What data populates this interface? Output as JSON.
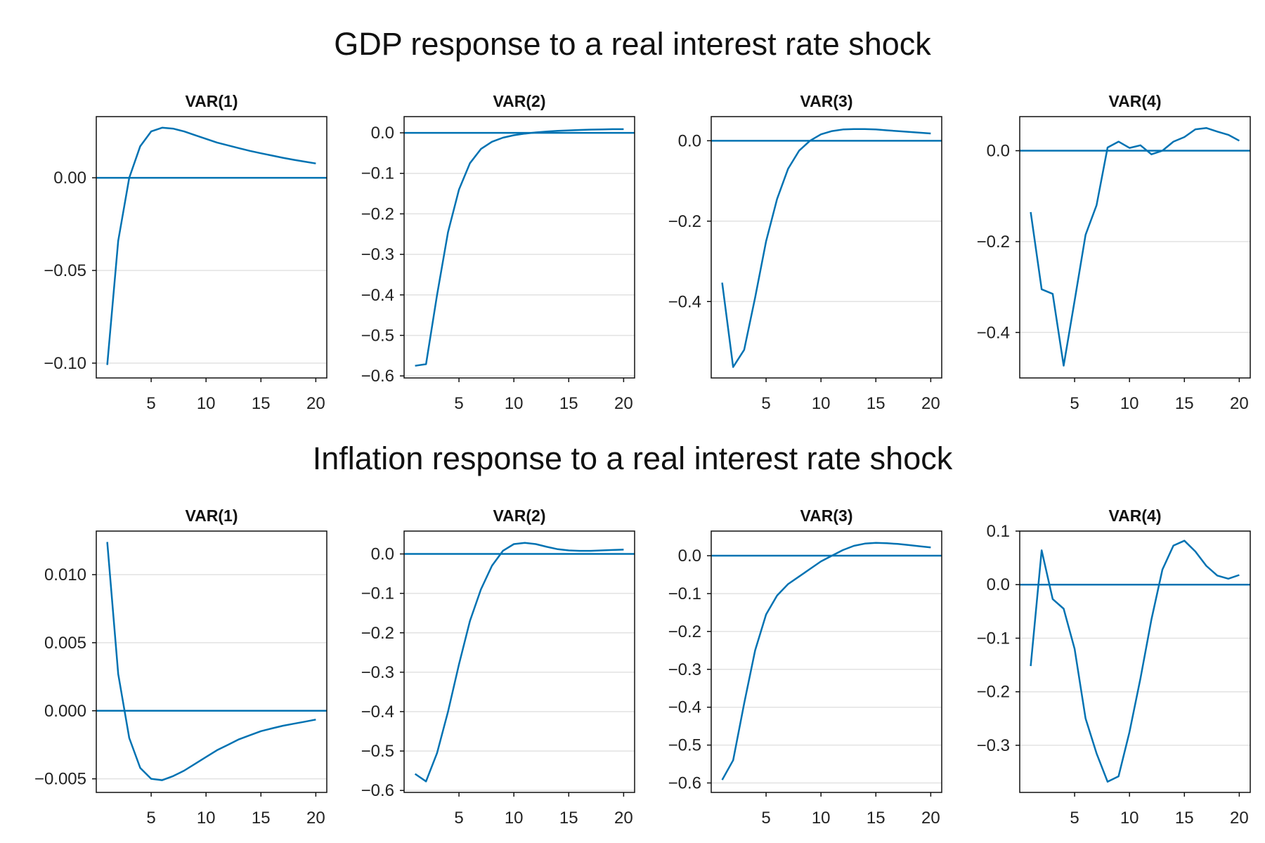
{
  "titles": {
    "top": "GDP response to a real interest rate shock",
    "bottom": "Inflation response to a real interest rate shock"
  },
  "colors": {
    "line": "#0072b2",
    "grid": "#e2e2e2",
    "frame": "#111111"
  },
  "chart_data": [
    {
      "type": "line",
      "group": "GDP response to a real interest rate shock",
      "title": "VAR(1)",
      "x": [
        1,
        2,
        3,
        4,
        5,
        6,
        7,
        8,
        9,
        10,
        11,
        12,
        13,
        14,
        15,
        16,
        17,
        18,
        19,
        20
      ],
      "series": [
        {
          "values": [
            -0.101,
            -0.034,
            0.0,
            0.017,
            0.025,
            0.027,
            0.0265,
            0.025,
            0.023,
            0.021,
            0.019,
            0.0175,
            0.016,
            0.0145,
            0.0132,
            0.012,
            0.0108,
            0.0097,
            0.0087,
            0.0077
          ]
        }
      ],
      "xlim": [
        0,
        21
      ],
      "ylim": [
        -0.108,
        0.033
      ],
      "xticks": [
        5,
        10,
        15,
        20
      ],
      "xtick_labels": [
        "5",
        "10",
        "15",
        "20"
      ],
      "yticks": [
        -0.1,
        -0.05,
        0.0
      ],
      "ytick_labels": [
        "−0.10",
        "−0.05",
        "0.00"
      ],
      "hline": 0,
      "grid": true
    },
    {
      "type": "line",
      "group": "GDP response to a real interest rate shock",
      "title": "VAR(2)",
      "x": [
        1,
        2,
        3,
        4,
        5,
        6,
        7,
        8,
        9,
        10,
        11,
        12,
        13,
        14,
        15,
        16,
        17,
        18,
        19,
        20
      ],
      "series": [
        {
          "values": [
            -0.575,
            -0.571,
            -0.4,
            -0.245,
            -0.14,
            -0.075,
            -0.04,
            -0.022,
            -0.012,
            -0.006,
            -0.002,
            0.001,
            0.003,
            0.005,
            0.006,
            0.007,
            0.008,
            0.0085,
            0.009,
            0.009
          ]
        }
      ],
      "xlim": [
        0,
        21
      ],
      "ylim": [
        -0.605,
        0.04
      ],
      "xticks": [
        5,
        10,
        15,
        20
      ],
      "xtick_labels": [
        "5",
        "10",
        "15",
        "20"
      ],
      "yticks": [
        0.0,
        -0.1,
        -0.2,
        -0.3,
        -0.4,
        -0.5,
        -0.6
      ],
      "ytick_labels": [
        "0.0",
        "−0.1",
        "−0.2",
        "−0.3",
        "−0.4",
        "−0.5",
        "−0.6"
      ],
      "hline": 0,
      "grid": true
    },
    {
      "type": "line",
      "group": "GDP response to a real interest rate shock",
      "title": "VAR(3)",
      "x": [
        1,
        2,
        3,
        4,
        5,
        6,
        7,
        8,
        9,
        10,
        11,
        12,
        13,
        14,
        15,
        16,
        17,
        18,
        19,
        20
      ],
      "series": [
        {
          "values": [
            -0.353,
            -0.563,
            -0.52,
            -0.39,
            -0.25,
            -0.145,
            -0.07,
            -0.025,
            0.0,
            0.016,
            0.024,
            0.028,
            0.029,
            0.029,
            0.028,
            0.026,
            0.024,
            0.022,
            0.02,
            0.018
          ]
        }
      ],
      "xlim": [
        0,
        21
      ],
      "ylim": [
        -0.59,
        0.06
      ],
      "xticks": [
        5,
        10,
        15,
        20
      ],
      "xtick_labels": [
        "5",
        "10",
        "15",
        "20"
      ],
      "yticks": [
        0.0,
        -0.2,
        -0.4
      ],
      "ytick_labels": [
        "0.0",
        "−0.2",
        "−0.4"
      ],
      "hline": 0,
      "grid": true
    },
    {
      "type": "line",
      "group": "GDP response to a real interest rate shock",
      "title": "VAR(4)",
      "x": [
        1,
        2,
        3,
        4,
        5,
        6,
        7,
        8,
        9,
        10,
        11,
        12,
        13,
        14,
        15,
        16,
        17,
        18,
        19,
        20
      ],
      "series": [
        {
          "values": [
            -0.135,
            -0.305,
            -0.315,
            -0.473,
            -0.33,
            -0.185,
            -0.12,
            0.007,
            0.02,
            0.006,
            0.012,
            -0.008,
            0.0,
            0.02,
            0.03,
            0.047,
            0.05,
            0.042,
            0.035,
            0.022
          ]
        }
      ],
      "xlim": [
        0,
        21
      ],
      "ylim": [
        -0.5,
        0.075
      ],
      "xticks": [
        5,
        10,
        15,
        20
      ],
      "xtick_labels": [
        "5",
        "10",
        "15",
        "20"
      ],
      "yticks": [
        0.0,
        -0.2,
        -0.4
      ],
      "ytick_labels": [
        "0.0",
        "−0.2",
        "−0.4"
      ],
      "hline": 0,
      "grid": true
    },
    {
      "type": "line",
      "group": "Inflation response to a real interest rate shock",
      "title": "VAR(1)",
      "x": [
        1,
        2,
        3,
        4,
        5,
        6,
        7,
        8,
        9,
        10,
        11,
        12,
        13,
        14,
        15,
        16,
        17,
        18,
        19,
        20
      ],
      "series": [
        {
          "values": [
            0.0124,
            0.0027,
            -0.002,
            -0.0042,
            -0.005,
            -0.0051,
            -0.0048,
            -0.0044,
            -0.0039,
            -0.0034,
            -0.0029,
            -0.0025,
            -0.0021,
            -0.0018,
            -0.0015,
            -0.0013,
            -0.0011,
            -0.00095,
            -0.0008,
            -0.00065
          ]
        }
      ],
      "xlim": [
        0,
        21
      ],
      "ylim": [
        -0.006,
        0.0132
      ],
      "xticks": [
        5,
        10,
        15,
        20
      ],
      "xtick_labels": [
        "5",
        "10",
        "15",
        "20"
      ],
      "yticks": [
        0.01,
        0.005,
        0.0,
        -0.005
      ],
      "ytick_labels": [
        "0.010",
        "0.005",
        "0.000",
        "−0.005"
      ],
      "hline": 0,
      "grid": true
    },
    {
      "type": "line",
      "group": "Inflation response to a real interest rate shock",
      "title": "VAR(2)",
      "x": [
        1,
        2,
        3,
        4,
        5,
        6,
        7,
        8,
        9,
        10,
        11,
        12,
        13,
        14,
        15,
        16,
        17,
        18,
        19,
        20
      ],
      "series": [
        {
          "values": [
            -0.558,
            -0.577,
            -0.505,
            -0.4,
            -0.28,
            -0.17,
            -0.09,
            -0.03,
            0.008,
            0.025,
            0.028,
            0.025,
            0.018,
            0.012,
            0.009,
            0.008,
            0.008,
            0.009,
            0.01,
            0.011
          ]
        }
      ],
      "xlim": [
        0,
        21
      ],
      "ylim": [
        -0.605,
        0.058
      ],
      "xticks": [
        5,
        10,
        15,
        20
      ],
      "xtick_labels": [
        "5",
        "10",
        "15",
        "20"
      ],
      "yticks": [
        0.0,
        -0.1,
        -0.2,
        -0.3,
        -0.4,
        -0.5,
        -0.6
      ],
      "ytick_labels": [
        "0.0",
        "−0.1",
        "−0.2",
        "−0.3",
        "−0.4",
        "−0.5",
        "−0.6"
      ],
      "hline": 0,
      "grid": true
    },
    {
      "type": "line",
      "group": "Inflation response to a real interest rate shock",
      "title": "VAR(3)",
      "x": [
        1,
        2,
        3,
        4,
        5,
        6,
        7,
        8,
        9,
        10,
        11,
        12,
        13,
        14,
        15,
        16,
        17,
        18,
        19,
        20
      ],
      "series": [
        {
          "values": [
            -0.592,
            -0.54,
            -0.39,
            -0.25,
            -0.155,
            -0.105,
            -0.075,
            -0.055,
            -0.035,
            -0.015,
            0.0,
            0.015,
            0.026,
            0.032,
            0.034,
            0.033,
            0.031,
            0.028,
            0.025,
            0.022
          ]
        }
      ],
      "xlim": [
        0,
        21
      ],
      "ylim": [
        -0.625,
        0.065
      ],
      "xticks": [
        5,
        10,
        15,
        20
      ],
      "xtick_labels": [
        "5",
        "10",
        "15",
        "20"
      ],
      "yticks": [
        0.0,
        -0.1,
        -0.2,
        -0.3,
        -0.4,
        -0.5,
        -0.6
      ],
      "ytick_labels": [
        "0.0",
        "−0.1",
        "−0.2",
        "−0.3",
        "−0.4",
        "−0.5",
        "−0.6"
      ],
      "hline": 0,
      "grid": true
    },
    {
      "type": "line",
      "group": "Inflation response to a real interest rate shock",
      "title": "VAR(4)",
      "x": [
        1,
        2,
        3,
        4,
        5,
        6,
        7,
        8,
        9,
        10,
        11,
        12,
        13,
        14,
        15,
        16,
        17,
        18,
        19,
        20
      ],
      "series": [
        {
          "values": [
            -0.152,
            0.064,
            -0.027,
            -0.045,
            -0.12,
            -0.25,
            -0.315,
            -0.368,
            -0.358,
            -0.275,
            -0.175,
            -0.065,
            0.028,
            0.073,
            0.082,
            0.062,
            0.035,
            0.017,
            0.011,
            0.018
          ]
        }
      ],
      "xlim": [
        0,
        21
      ],
      "ylim": [
        -0.388,
        0.1
      ],
      "xticks": [
        5,
        10,
        15,
        20
      ],
      "xtick_labels": [
        "5",
        "10",
        "15",
        "20"
      ],
      "yticks": [
        0.1,
        0.0,
        -0.1,
        -0.2,
        -0.3
      ],
      "ytick_labels": [
        "0.1",
        "0.0",
        "−0.1",
        "−0.2",
        "−0.3"
      ],
      "hline": 0,
      "grid": true
    }
  ]
}
